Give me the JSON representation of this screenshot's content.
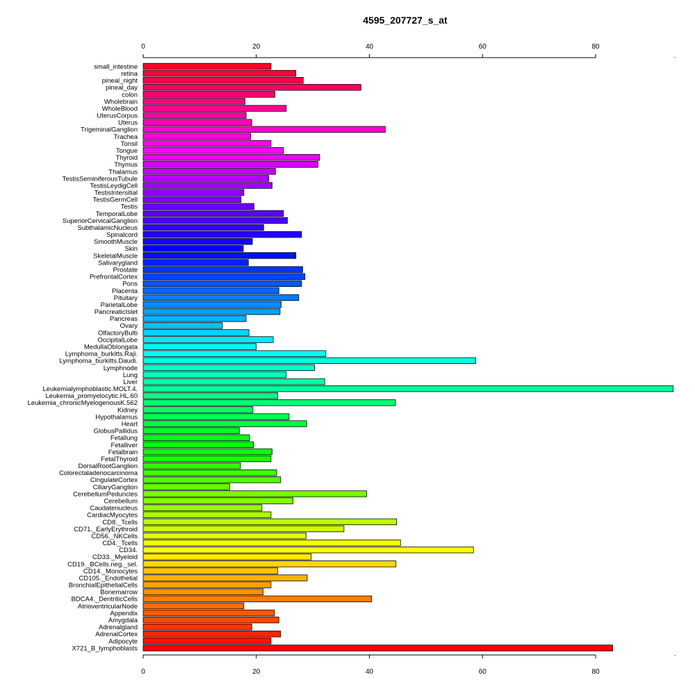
{
  "chart_data": {
    "type": "bar",
    "orientation": "horizontal",
    "title": "4595_207727_s_at",
    "xlabel": "",
    "ylabel": "",
    "xlim": [
      0,
      94
    ],
    "xticks": [
      0,
      20,
      40,
      60,
      80
    ],
    "xtick_labels": [
      "0",
      "20",
      "40",
      "60",
      "80"
    ],
    "grid": false,
    "legend": "none",
    "color_scheme": "rainbow",
    "categories": [
      "small_intestine",
      "retina",
      "pineal_night",
      "pineal_day",
      "colon",
      "Wholebrain",
      "WholeBlood",
      "UterusCorpus",
      "Uterus",
      "TrigeminalGanglion",
      "Trachea",
      "Tonsil",
      "Tongue",
      "Thyroid",
      "Thymus",
      "Thalamus",
      "TestisSeminiferousTubule",
      "TestisLeydigCell",
      "TestisIntersitial",
      "TestisGermCell",
      "Testis",
      "TemporalLobe",
      "SuperiorCervicalGanglion",
      "SubthalamicNucleus",
      "Spinalcord",
      "SmoothMuscle",
      "Skin",
      "SkeletalMuscle",
      "Salivarygland",
      "Prostate",
      "PrefrontalCortex",
      "Pons",
      "Placenta",
      "Pituitary",
      "ParietalLobe",
      "PancreaticIslet",
      "Pancreas",
      "Ovary",
      "OlfactoryBulb",
      "OccipitalLobe",
      "MedullaOblongata",
      "Lymphoma_burkitts.Raji.",
      "Lymphoma_burkitts.Daudi.",
      "Lymphnode",
      "Lung",
      "Liver",
      "Leukemialymphoblastic.MOLT.4.",
      "Leukemia_promyelocytic.HL.60",
      "Leukemia_chronicMyelogenousK.562",
      "Kidney",
      "Hypothalamus",
      "Heart",
      "GlobusPallidus",
      "Fetallung",
      "Fetalliver",
      "Fetalbrain",
      "FetalThyroid",
      "DorsalRootGanglion",
      "Colorectaladenocarcinoma",
      "CingulateCortex",
      "CiliaryGanglion",
      "CerebellumPeduncles",
      "Cerebellum",
      "Caudatenucleus",
      "CardiacMyocytes",
      "CD8._Tcells",
      "CD71._EarlyErythroid",
      "CD56._NKCells",
      "CD4._Tcells",
      "CD34.",
      "CD33._Myeloid",
      "CD19._BCells.neg._sel.",
      "CD14._Monocytes",
      "CD105._Endothelial",
      "BronchialEpithelialCells",
      "Bonemarrow",
      "BDCA4._DentriticCells",
      "AtrioventricularNode",
      "Appendix",
      "Amygdala",
      "Adrenalgland",
      "AdrenalCortex",
      "Adipocyte",
      "X721_B_lymphoblasts"
    ],
    "values": [
      22.6,
      27.0,
      28.3,
      38.5,
      23.3,
      18.0,
      25.3,
      18.2,
      19.2,
      42.8,
      19.0,
      22.6,
      24.8,
      31.2,
      30.9,
      23.4,
      22.2,
      22.8,
      17.8,
      17.3,
      19.6,
      24.8,
      25.5,
      21.3,
      28.0,
      19.3,
      17.7,
      27.0,
      18.6,
      28.2,
      28.6,
      28.0,
      24.0,
      27.5,
      24.4,
      24.2,
      18.2,
      14.0,
      18.7,
      23.0,
      20.0,
      32.3,
      58.8,
      30.3,
      25.3,
      32.1,
      93.7,
      23.8,
      44.6,
      19.4,
      25.8,
      28.9,
      17.0,
      18.8,
      19.5,
      22.8,
      22.6,
      17.2,
      23.6,
      24.3,
      15.3,
      39.5,
      26.5,
      21.0,
      22.6,
      44.8,
      35.5,
      28.8,
      45.5,
      58.4,
      29.7,
      44.7,
      23.8,
      29.0,
      22.6,
      21.2,
      40.4,
      17.8,
      23.2,
      24.0,
      19.2,
      24.3,
      22.6,
      83.0
    ]
  }
}
